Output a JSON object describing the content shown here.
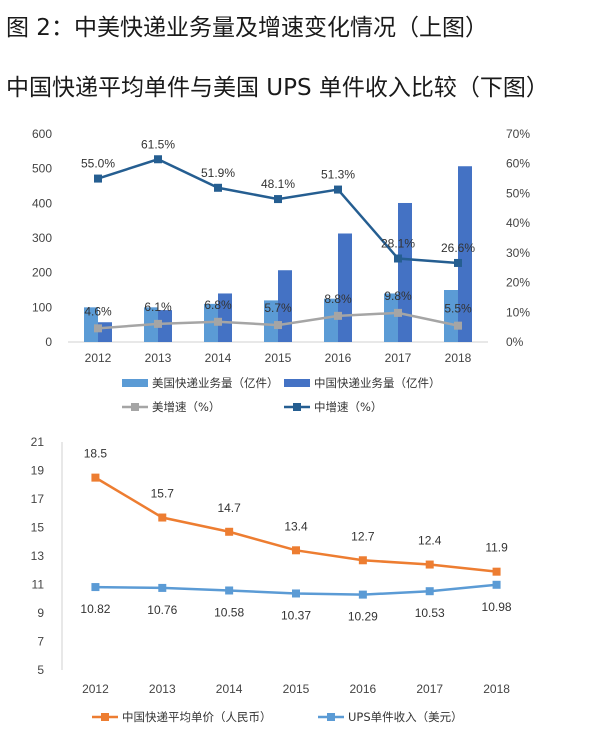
{
  "titles": {
    "line1": "图 2：中美快递业务量及增速变化情况（上图）",
    "line2": "中国快递平均单件与美国 UPS 单件收入比较（下图）"
  },
  "chart_data": [
    {
      "type": "bar",
      "title": "中美快递业务量及增速变化情况",
      "categories": [
        "2012",
        "2013",
        "2014",
        "2015",
        "2016",
        "2017",
        "2018"
      ],
      "ylim": [
        0,
        600
      ],
      "y_ticks": [
        "0",
        "100",
        "200",
        "300",
        "400",
        "500",
        "600"
      ],
      "y2lim": [
        0,
        70
      ],
      "y2_ticks": [
        "0%",
        "10%",
        "20%",
        "30%",
        "40%",
        "50%",
        "60%",
        "70%"
      ],
      "series": [
        {
          "name": "美国快递业务量（亿件）",
          "kind": "bar",
          "axis": "left",
          "color": "#5b9bd5",
          "values": [
            100,
            100,
            110,
            120,
            125,
            140,
            150
          ]
        },
        {
          "name": "中国快递业务量（亿件）",
          "kind": "bar",
          "axis": "left",
          "color": "#4472c4",
          "values": [
            57,
            92,
            140,
            207,
            313,
            401,
            507
          ]
        },
        {
          "name": "美增速（%）",
          "kind": "line",
          "axis": "right",
          "color": "#a5a5a5",
          "values": [
            4.6,
            6.1,
            6.8,
            5.7,
            8.8,
            9.8,
            5.5
          ],
          "labels": [
            "4.6%",
            "6.1%",
            "6.8%",
            "5.7%",
            "8.8%",
            "9.8%",
            "5.5%"
          ]
        },
        {
          "name": "中增速（%）",
          "kind": "line",
          "axis": "right",
          "color": "#255e91",
          "values": [
            55.0,
            61.5,
            51.9,
            48.1,
            51.3,
            28.1,
            26.6
          ],
          "labels": [
            "55.0%",
            "61.5%",
            "51.9%",
            "48.1%",
            "51.3%",
            "28.1%",
            "26.6%"
          ]
        }
      ]
    },
    {
      "type": "line",
      "title": "中国快递平均单件与美国 UPS 单件收入比较",
      "categories": [
        "2012",
        "2013",
        "2014",
        "2015",
        "2016",
        "2017",
        "2018"
      ],
      "ylim": [
        5,
        21
      ],
      "y_ticks": [
        "5",
        "7",
        "9",
        "11",
        "13",
        "15",
        "17",
        "19",
        "21"
      ],
      "series": [
        {
          "name": "中国快递平均单价（人民币）",
          "color": "#ed7d31",
          "values": [
            18.5,
            15.7,
            14.7,
            13.4,
            12.7,
            12.4,
            11.9
          ],
          "labels": [
            "18.5",
            "15.7",
            "14.7",
            "13.4",
            "12.7",
            "12.4",
            "11.9"
          ]
        },
        {
          "name": "UPS单件收入（美元）",
          "color": "#5b9bd5",
          "values": [
            10.82,
            10.76,
            10.58,
            10.37,
            10.29,
            10.53,
            10.98
          ],
          "labels": [
            "10.82",
            "10.76",
            "10.58",
            "10.37",
            "10.29",
            "10.53",
            "10.98"
          ]
        }
      ]
    }
  ]
}
